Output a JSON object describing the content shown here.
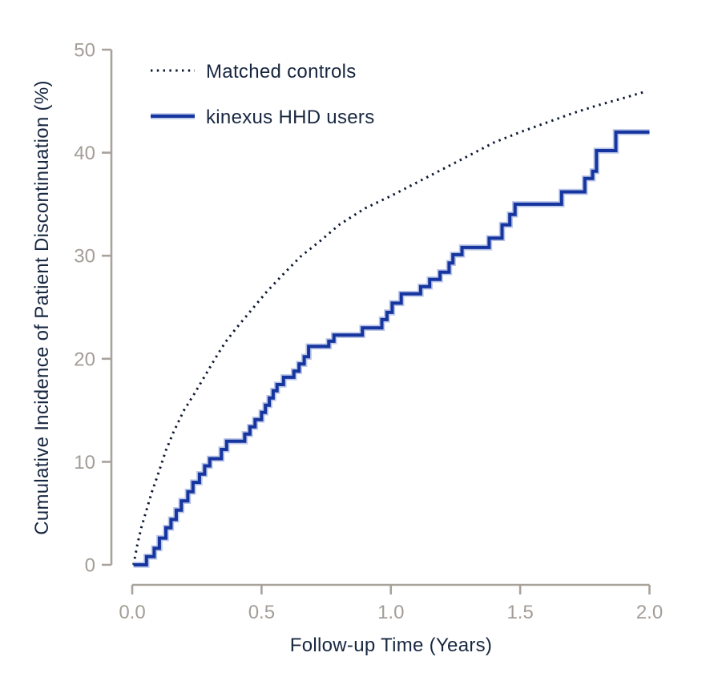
{
  "chart_data": {
    "type": "line",
    "title": "",
    "xlabel": "Follow-up Time (Years)",
    "ylabel": "Cumulative Incidence of Patient Discontinuation (%)",
    "xlim": [
      0.0,
      2.0
    ],
    "ylim": [
      0,
      50
    ],
    "x_ticks": [
      0.0,
      0.5,
      1.0,
      1.5,
      2.0
    ],
    "x_tick_labels": [
      "0.0",
      "0.5",
      "1.0",
      "1.5",
      "2.0"
    ],
    "y_ticks": [
      0,
      10,
      20,
      30,
      40,
      50
    ],
    "y_tick_labels": [
      "0",
      "10",
      "20",
      "30",
      "40",
      "50"
    ],
    "grid": false,
    "legend_position": "top-left",
    "series": [
      {
        "name": "Matched controls",
        "line_style": "dotted",
        "color": "#0c1830",
        "draw": "smooth",
        "points": [
          [
            0.005,
            0
          ],
          [
            0.02,
            2.0
          ],
          [
            0.035,
            3.6
          ],
          [
            0.055,
            5.3
          ],
          [
            0.075,
            7.0
          ],
          [
            0.1,
            8.8
          ],
          [
            0.13,
            11.1
          ],
          [
            0.16,
            12.9
          ],
          [
            0.2,
            15.0
          ],
          [
            0.24,
            16.6
          ],
          [
            0.28,
            18.3
          ],
          [
            0.32,
            20.0
          ],
          [
            0.36,
            21.6
          ],
          [
            0.4,
            22.9
          ],
          [
            0.45,
            24.4
          ],
          [
            0.52,
            26.5
          ],
          [
            0.58,
            28.1
          ],
          [
            0.65,
            29.9
          ],
          [
            0.73,
            31.5
          ],
          [
            0.8,
            33.0
          ],
          [
            0.9,
            34.6
          ],
          [
            1.0,
            35.8
          ],
          [
            1.1,
            37.1
          ],
          [
            1.2,
            38.4
          ],
          [
            1.3,
            39.7
          ],
          [
            1.4,
            41.0
          ],
          [
            1.5,
            42.0
          ],
          [
            1.6,
            42.9
          ],
          [
            1.7,
            43.8
          ],
          [
            1.8,
            44.6
          ],
          [
            1.9,
            45.3
          ],
          [
            1.98,
            45.9
          ]
        ]
      },
      {
        "name": "kinexus HHD users",
        "line_style": "solid",
        "color": "#16359f",
        "halo_color": "#b9c5e8",
        "draw": "step",
        "end_x": 2.0,
        "points": [
          [
            0.005,
            0
          ],
          [
            0.055,
            0.8
          ],
          [
            0.085,
            1.6
          ],
          [
            0.105,
            2.6
          ],
          [
            0.13,
            3.6
          ],
          [
            0.15,
            4.4
          ],
          [
            0.17,
            5.3
          ],
          [
            0.19,
            6.2
          ],
          [
            0.215,
            7.1
          ],
          [
            0.235,
            8.0
          ],
          [
            0.26,
            8.8
          ],
          [
            0.28,
            9.6
          ],
          [
            0.3,
            10.3
          ],
          [
            0.345,
            11.2
          ],
          [
            0.365,
            12.0
          ],
          [
            0.435,
            12.7
          ],
          [
            0.455,
            13.4
          ],
          [
            0.475,
            14.1
          ],
          [
            0.5,
            14.8
          ],
          [
            0.515,
            15.5
          ],
          [
            0.53,
            16.2
          ],
          [
            0.545,
            16.9
          ],
          [
            0.56,
            17.5
          ],
          [
            0.585,
            18.2
          ],
          [
            0.625,
            18.8
          ],
          [
            0.645,
            19.5
          ],
          [
            0.665,
            20.2
          ],
          [
            0.682,
            21.2
          ],
          [
            0.76,
            21.7
          ],
          [
            0.78,
            22.3
          ],
          [
            0.89,
            23.0
          ],
          [
            0.965,
            23.8
          ],
          [
            0.985,
            24.5
          ],
          [
            1.005,
            25.4
          ],
          [
            1.04,
            26.3
          ],
          [
            1.115,
            27.0
          ],
          [
            1.15,
            27.7
          ],
          [
            1.19,
            28.4
          ],
          [
            1.225,
            29.3
          ],
          [
            1.24,
            30.1
          ],
          [
            1.275,
            30.8
          ],
          [
            1.38,
            31.7
          ],
          [
            1.43,
            33.0
          ],
          [
            1.46,
            34.0
          ],
          [
            1.48,
            35.0
          ],
          [
            1.66,
            36.2
          ],
          [
            1.75,
            37.5
          ],
          [
            1.78,
            38.2
          ],
          [
            1.795,
            40.2
          ],
          [
            1.87,
            42.0
          ]
        ]
      }
    ]
  },
  "colors": {
    "axis_line": "#a8a29b",
    "tick_text": "#a39d96",
    "label_text": "#182740",
    "background": "#ffffff"
  }
}
